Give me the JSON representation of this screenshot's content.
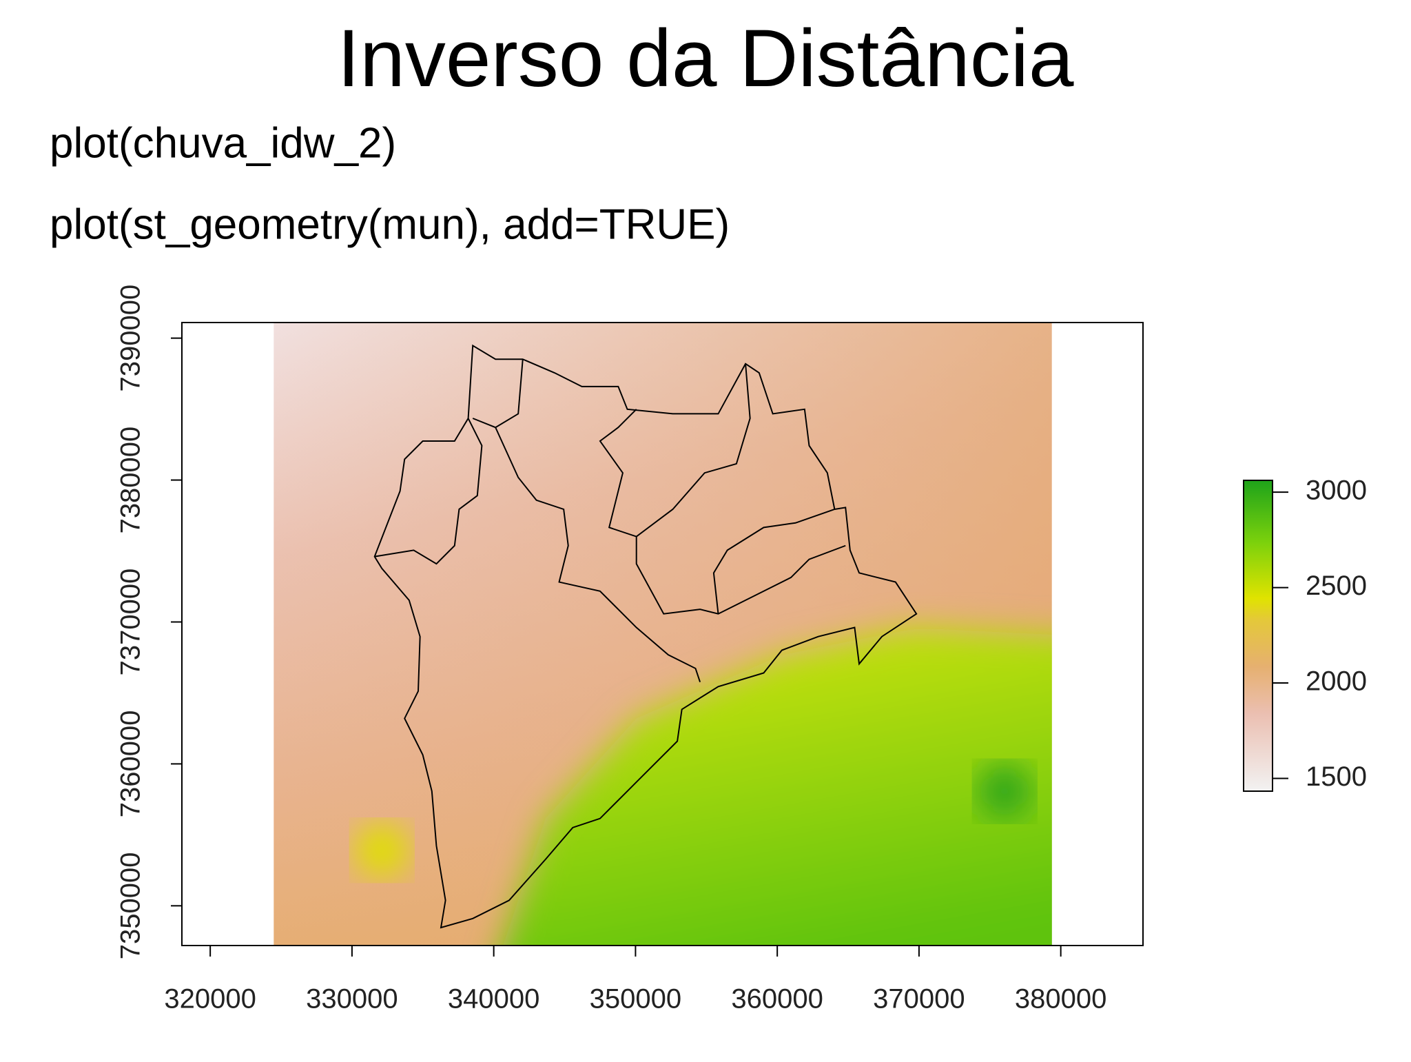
{
  "header": {
    "title": "Inverso da Distância",
    "lines": [
      "plot(chuva_idw_2)",
      "plot(st_geometry(mun), add=TRUE)"
    ]
  },
  "chart_data": {
    "type": "raster",
    "xlim": [
      318000,
      385800
    ],
    "xticks": [
      320000,
      330000,
      340000,
      350000,
      360000,
      370000,
      380000
    ],
    "ylim": [
      7347200,
      7391100
    ],
    "yticks": [
      7350000,
      7360000,
      7370000,
      7380000,
      7390000
    ],
    "colorbar": {
      "lim": [
        1433,
        3062
      ],
      "ticks": [
        1500,
        2000,
        2500,
        3000
      ]
    }
  }
}
